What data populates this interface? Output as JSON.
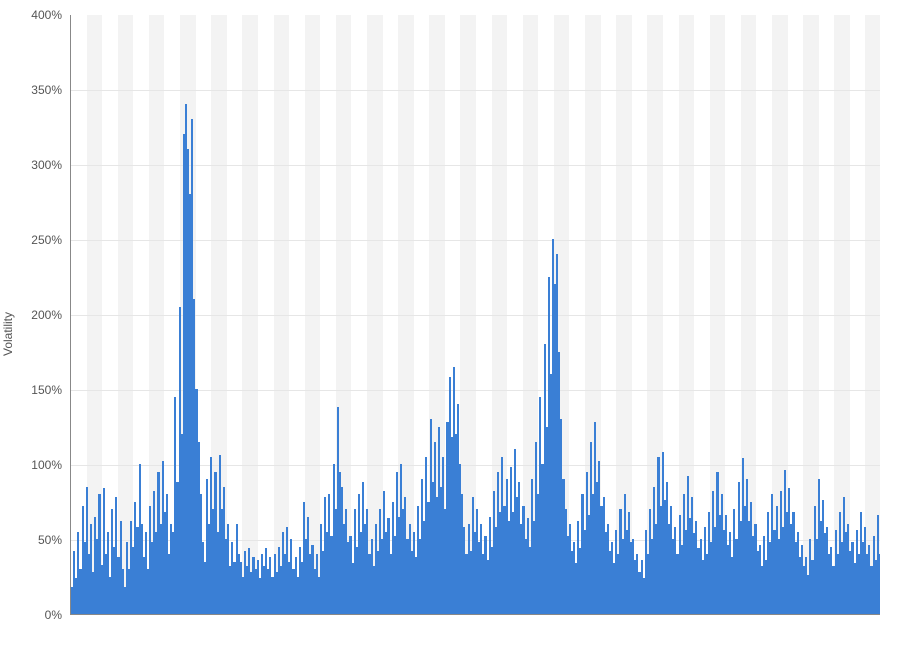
{
  "chart": {
    "type": "bar",
    "ylabel": "Volatility",
    "ylim": [
      0,
      400
    ],
    "yticks": [
      0,
      50,
      100,
      150,
      200,
      250,
      300,
      350,
      400
    ],
    "ytick_labels": [
      "0%",
      "50%",
      "100%",
      "150%",
      "200%",
      "250%",
      "300%",
      "350%",
      "400%"
    ],
    "label_fontsize": 12,
    "tick_fontsize": 12,
    "tick_color": "#555555",
    "background_color": "#ffffff",
    "band_color": "#f3f3f3",
    "grid_color": "#e6e6e6",
    "bar_color": "#3a7fd5",
    "axis_color": "#888888",
    "x_bands": 52,
    "values": [
      18,
      42,
      24,
      55,
      30,
      72,
      48,
      85,
      40,
      60,
      28,
      65,
      50,
      80,
      33,
      84,
      40,
      55,
      25,
      70,
      45,
      78,
      38,
      62,
      30,
      18,
      48,
      30,
      62,
      45,
      75,
      58,
      100,
      60,
      38,
      55,
      30,
      72,
      48,
      82,
      55,
      95,
      60,
      102,
      68,
      80,
      40,
      60,
      55,
      145,
      88,
      205,
      120,
      320,
      340,
      310,
      280,
      330,
      210,
      150,
      115,
      80,
      48,
      35,
      90,
      60,
      105,
      70,
      95,
      55,
      106,
      70,
      85,
      50,
      60,
      32,
      48,
      35,
      60,
      40,
      35,
      25,
      42,
      32,
      44,
      28,
      38,
      30,
      36,
      24,
      40,
      32,
      44,
      30,
      38,
      25,
      40,
      28,
      45,
      32,
      55,
      40,
      58,
      35,
      50,
      30,
      38,
      25,
      45,
      35,
      75,
      50,
      65,
      40,
      46,
      30,
      40,
      25,
      60,
      42,
      78,
      55,
      80,
      52,
      100,
      70,
      138,
      95,
      85,
      60,
      70,
      48,
      52,
      34,
      70,
      45,
      80,
      55,
      88,
      60,
      70,
      40,
      50,
      32,
      60,
      42,
      70,
      50,
      82,
      55,
      64,
      40,
      75,
      52,
      95,
      65,
      100,
      70,
      78,
      50,
      60,
      42,
      55,
      38,
      72,
      50,
      90,
      62,
      105,
      75,
      130,
      88,
      115,
      78,
      125,
      85,
      105,
      70,
      128,
      158,
      118,
      165,
      120,
      140,
      100,
      80,
      58,
      40,
      60,
      42,
      78,
      55,
      70,
      48,
      60,
      40,
      52,
      36,
      65,
      45,
      82,
      58,
      95,
      68,
      105,
      72,
      90,
      62,
      98,
      68,
      110,
      78,
      88,
      60,
      72,
      50,
      64,
      45,
      90,
      62,
      115,
      80,
      145,
      100,
      180,
      125,
      225,
      160,
      250,
      220,
      240,
      175,
      130,
      90,
      70,
      52,
      60,
      42,
      48,
      34,
      62,
      44,
      80,
      56,
      95,
      66,
      115,
      80,
      128,
      88,
      102,
      72,
      78,
      55,
      60,
      42,
      48,
      34,
      56,
      40,
      70,
      50,
      80,
      56,
      68,
      48,
      50,
      36,
      40,
      28,
      36,
      24,
      56,
      40,
      70,
      50,
      85,
      60,
      105,
      72,
      108,
      76,
      88,
      60,
      72,
      50,
      58,
      40,
      66,
      46,
      80,
      56,
      92,
      64,
      78,
      54,
      62,
      44,
      50,
      36,
      58,
      40,
      68,
      48,
      82,
      58,
      95,
      66,
      80,
      56,
      66,
      46,
      55,
      38,
      70,
      50,
      88,
      62,
      104,
      72,
      90,
      62,
      75,
      52,
      60,
      42,
      46,
      32,
      52,
      36,
      68,
      48,
      80,
      56,
      72,
      50,
      82,
      58,
      96,
      68,
      84,
      60,
      68,
      48,
      55,
      38,
      46,
      32,
      38,
      26,
      50,
      36,
      72,
      50,
      90,
      62,
      76,
      54,
      58,
      40,
      45,
      32,
      56,
      40,
      68,
      48,
      78,
      55,
      60,
      42,
      48,
      34,
      56,
      40,
      68,
      48,
      58,
      40,
      46,
      32,
      52,
      36,
      66,
      40
    ]
  }
}
